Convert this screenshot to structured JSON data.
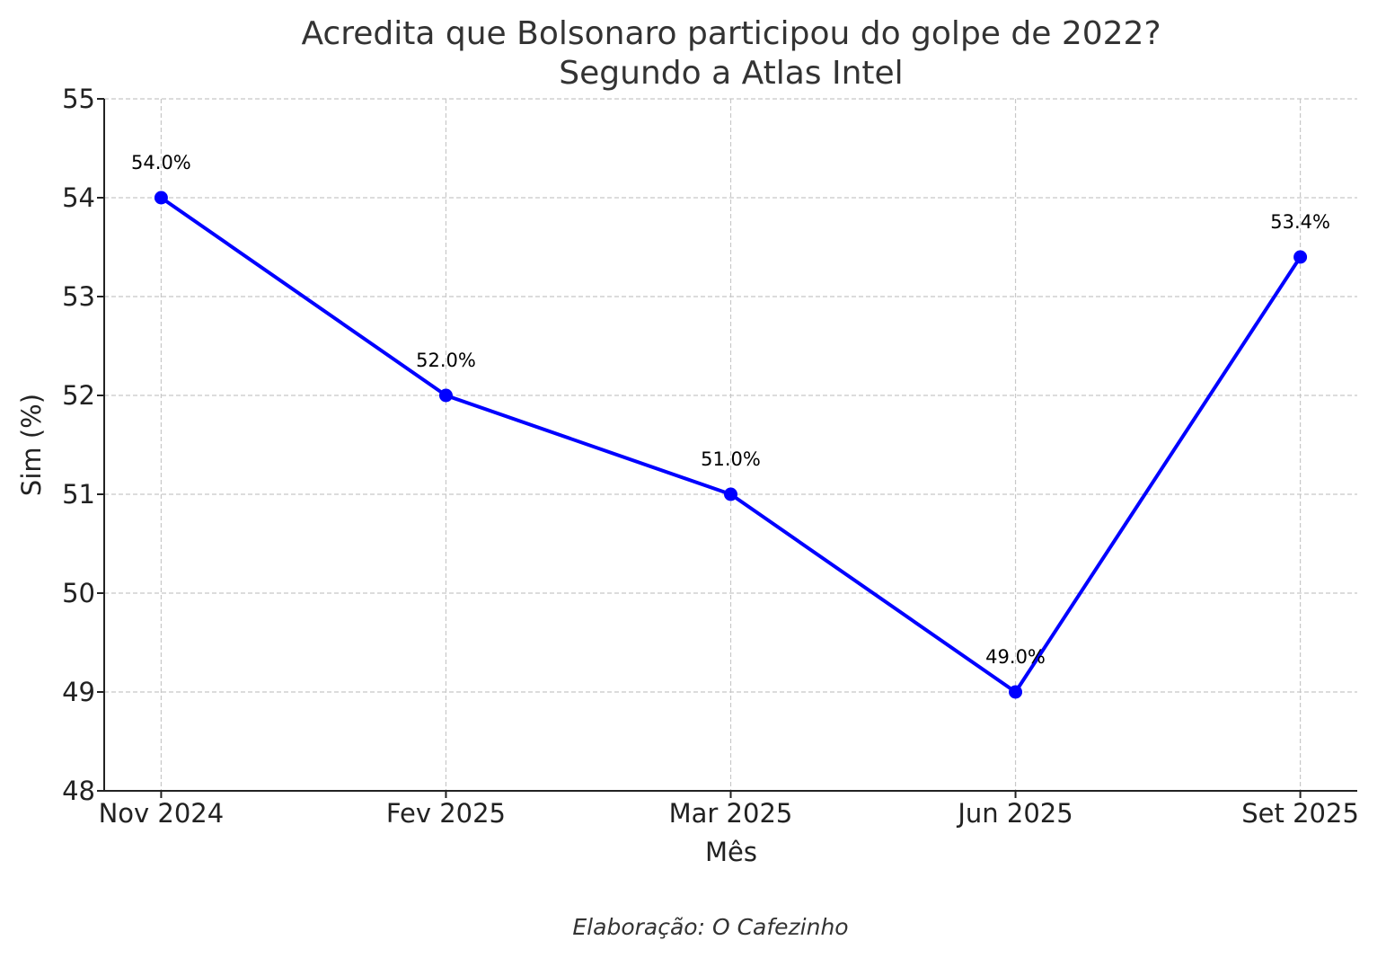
{
  "chart_data": {
    "type": "line",
    "title": "Acredita que Bolsonaro participou do golpe de 2022?",
    "subtitle": "Segundo a Atlas Intel",
    "xlabel": "Mês",
    "ylabel": "Sim (%)",
    "categories": [
      "Nov 2024",
      "Fev 2025",
      "Mar 2025",
      "Jun 2025",
      "Set 2025"
    ],
    "values": [
      54.0,
      52.0,
      51.0,
      49.0,
      53.4
    ],
    "data_labels": [
      "54.0%",
      "52.0%",
      "51.0%",
      "49.0%",
      "53.4%"
    ],
    "ylim": [
      48,
      55
    ],
    "yticks": [
      "48",
      "49",
      "50",
      "51",
      "52",
      "53",
      "54",
      "55"
    ],
    "grid": true,
    "line_color": "#0000ff",
    "marker": "circle"
  },
  "footer": "Elaboração: O Cafezinho"
}
